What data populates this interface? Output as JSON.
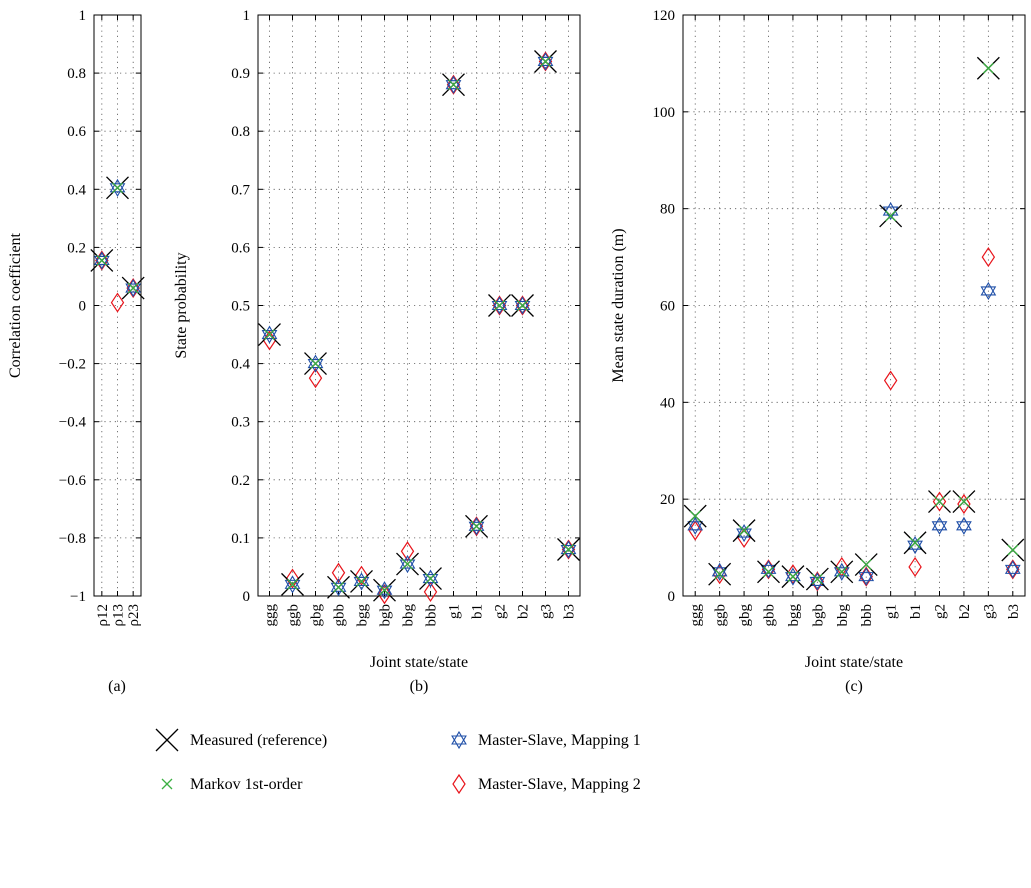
{
  "legend": [
    {
      "key": "measured",
      "label": "Measured (reference)",
      "color": "#000000",
      "marker": "x-large"
    },
    {
      "key": "markov",
      "label": "Markov 1st-order",
      "color": "#3cb043",
      "marker": "x-small"
    },
    {
      "key": "ms1",
      "label": "Master-Slave, Mapping 1",
      "color": "#1f4fa8",
      "marker": "hexagram"
    },
    {
      "key": "ms2",
      "label": "Master-Slave, Mapping 2",
      "color": "#e8141b",
      "marker": "diamond"
    }
  ],
  "chart_data": [
    {
      "panel": "a",
      "panel_label": "(a)",
      "type": "scatter",
      "title": "",
      "xlabel": "",
      "ylabel": "Correlation coefficient",
      "ylim": [
        -1,
        1
      ],
      "yticks": [
        -1,
        -0.8,
        -0.6,
        -0.4,
        -0.2,
        0,
        0.2,
        0.4,
        0.6,
        0.8,
        1
      ],
      "ytick_labels": [
        "−1",
        "−0.8",
        "−0.6",
        "−0.4",
        "−0.2",
        "0",
        "0.2",
        "0.4",
        "0.6",
        "0.8",
        "1"
      ],
      "grid": true,
      "categories": [
        "ρ12",
        "ρ13",
        "ρ23"
      ],
      "series": [
        {
          "key": "measured",
          "values": [
            0.155,
            0.405,
            0.06
          ]
        },
        {
          "key": "markov",
          "values": [
            0.155,
            0.405,
            0.06
          ]
        },
        {
          "key": "ms1",
          "values": [
            0.155,
            0.405,
            0.06
          ]
        },
        {
          "key": "ms2",
          "values": [
            0.155,
            0.01,
            0.06
          ]
        }
      ]
    },
    {
      "panel": "b",
      "panel_label": "(b)",
      "type": "scatter",
      "title": "",
      "xlabel": "Joint state/state",
      "ylabel": "State probability",
      "ylim": [
        0,
        1
      ],
      "yticks": [
        0,
        0.1,
        0.2,
        0.3,
        0.4,
        0.5,
        0.6,
        0.7,
        0.8,
        0.9,
        1
      ],
      "ytick_labels": [
        "0",
        "0.1",
        "0.2",
        "0.3",
        "0.4",
        "0.5",
        "0.6",
        "0.7",
        "0.8",
        "0.9",
        "1"
      ],
      "grid": true,
      "categories": [
        "ggg",
        "ggb",
        "gbg",
        "gbb",
        "bgg",
        "bgb",
        "bbg",
        "bbb",
        "g1",
        "b1",
        "g2",
        "b2",
        "g3",
        "b3"
      ],
      "series": [
        {
          "key": "measured",
          "values": [
            0.45,
            0.02,
            0.4,
            0.015,
            0.025,
            0.01,
            0.055,
            0.03,
            0.88,
            0.12,
            0.5,
            0.5,
            0.92,
            0.08
          ]
        },
        {
          "key": "markov",
          "values": [
            0.45,
            0.02,
            0.4,
            0.015,
            0.025,
            0.01,
            0.055,
            0.03,
            0.88,
            0.12,
            0.5,
            0.5,
            0.92,
            0.08
          ]
        },
        {
          "key": "ms1",
          "values": [
            0.45,
            0.02,
            0.4,
            0.015,
            0.025,
            0.01,
            0.055,
            0.03,
            0.88,
            0.12,
            0.5,
            0.5,
            0.92,
            0.08
          ]
        },
        {
          "key": "ms2",
          "values": [
            0.44,
            0.03,
            0.375,
            0.04,
            0.035,
            0.003,
            0.077,
            0.007,
            0.88,
            0.12,
            0.5,
            0.5,
            0.92,
            0.08
          ]
        }
      ]
    },
    {
      "panel": "c",
      "panel_label": "(c)",
      "type": "scatter",
      "title": "",
      "xlabel": "Joint state/state",
      "ylabel": "Mean state duration (m)",
      "ylim": [
        0,
        120
      ],
      "yticks": [
        0,
        20,
        40,
        60,
        80,
        100,
        120
      ],
      "ytick_labels": [
        "0",
        "20",
        "40",
        "60",
        "80",
        "100",
        "120"
      ],
      "grid": true,
      "categories": [
        "ggg",
        "ggb",
        "gbg",
        "gbb",
        "bgg",
        "bgb",
        "bbg",
        "bbb",
        "g1",
        "b1",
        "g2",
        "b2",
        "g3",
        "b3"
      ],
      "series": [
        {
          "key": "measured",
          "values": [
            16.5,
            4.5,
            13.5,
            5,
            4,
            3.5,
            5,
            6.5,
            78.5,
            11,
            19.5,
            19.5,
            109,
            9.5
          ]
        },
        {
          "key": "markov",
          "values": [
            16.5,
            4.5,
            13.5,
            5,
            4,
            3.5,
            5,
            6.5,
            78.5,
            11,
            19.5,
            19.5,
            109,
            9.5
          ]
        },
        {
          "key": "ms1",
          "values": [
            14.5,
            5,
            13,
            5.5,
            4,
            3,
            5,
            4,
            79.5,
            10.5,
            14.5,
            14.5,
            63,
            5.5
          ]
        },
        {
          "key": "ms2",
          "values": [
            13.5,
            4.5,
            12,
            5.5,
            4.5,
            3,
            6,
            4,
            44.5,
            6,
            19.5,
            19,
            70,
            5.5
          ]
        }
      ]
    }
  ]
}
